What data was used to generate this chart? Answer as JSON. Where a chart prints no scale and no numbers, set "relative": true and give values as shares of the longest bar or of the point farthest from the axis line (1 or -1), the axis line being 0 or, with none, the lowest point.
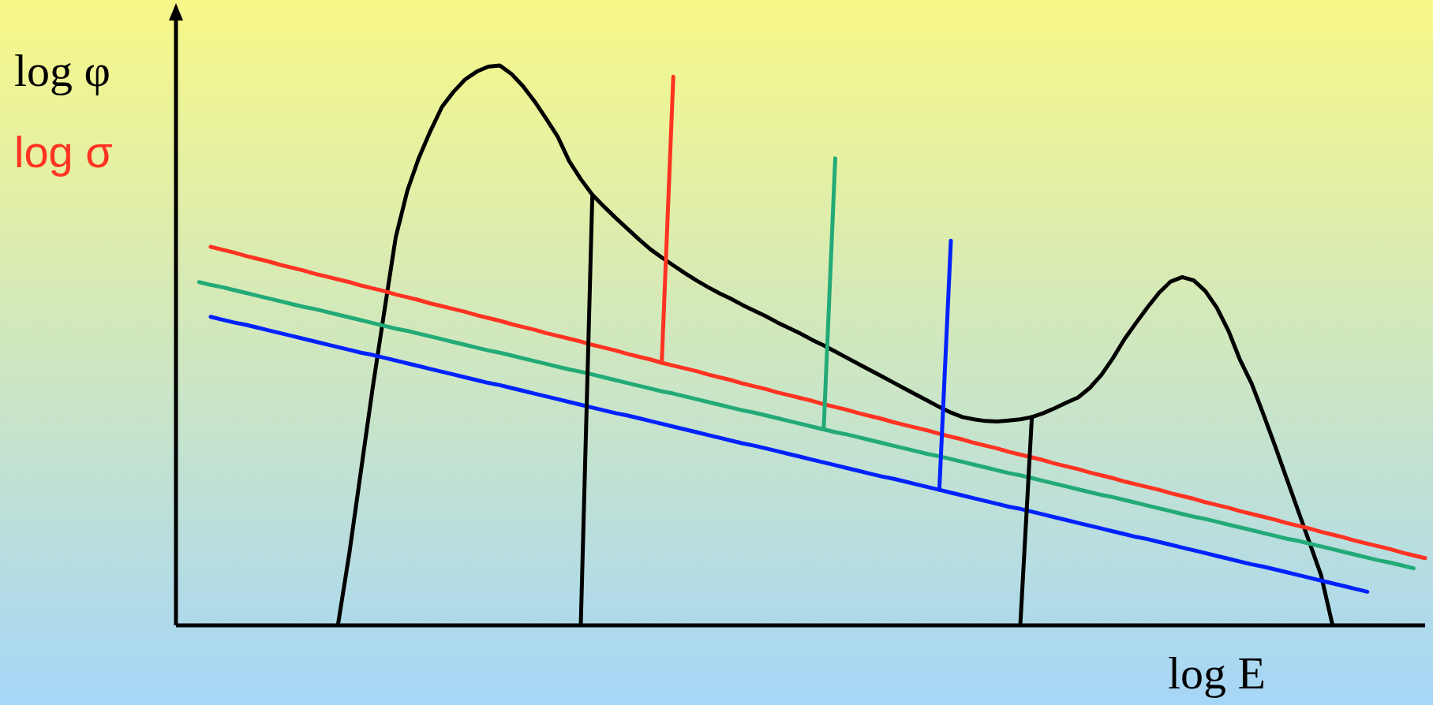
{
  "chart_data": {
    "type": "line",
    "relative": true,
    "ylabel": "log φ",
    "xlabel": "log E",
    "annotations": [
      "log σ"
    ],
    "marker": "none",
    "categories": [
      null,
      null,
      null,
      null,
      null,
      null,
      null,
      null,
      null,
      null,
      null,
      null,
      null,
      null,
      null,
      null,
      null,
      null,
      null,
      null,
      null,
      null,
      null,
      null,
      null,
      null,
      null,
      null,
      null,
      null,
      null,
      null,
      null,
      null,
      null,
      null,
      null,
      null,
      null,
      null,
      null,
      null,
      null,
      null,
      null,
      null,
      null,
      null,
      null,
      null,
      null,
      null,
      null,
      null,
      null,
      null,
      null,
      null,
      null,
      null,
      null,
      null,
      null,
      null,
      null,
      null,
      null,
      null,
      null,
      null,
      null,
      null,
      null,
      null,
      null,
      null,
      null,
      null,
      null,
      null,
      null,
      null,
      null,
      null,
      null,
      null,
      null,
      null,
      null,
      null,
      null,
      null,
      null,
      null,
      null,
      null,
      null,
      null,
      null,
      null,
      null,
      null,
      null,
      null,
      null,
      null,
      null,
      null,
      null
    ],
    "series": [
      {
        "color": "#000000",
        "values": [
          null,
          null,
          null,
          null,
          null,
          null,
          null,
          null,
          null,
          null,
          null,
          null,
          null,
          null,
          0,
          0.13,
          0.277,
          0.423,
          0.559,
          0.693,
          0.776,
          0.835,
          0.883,
          0.926,
          0.953,
          0.975,
          0.989,
          0.998,
          1,
          0.985,
          0.963,
          0.936,
          0.905,
          0.873,
          0.829,
          0.797,
          0.769,
          0.748,
          0.728,
          0.709,
          0.69,
          0.672,
          0.657,
          0.643,
          0.629,
          0.616,
          0.604,
          0.593,
          0.583,
          0.572,
          0.562,
          0.552,
          0.541,
          0.531,
          0.521,
          0.51,
          0.5,
          0.489,
          0.478,
          0.467,
          0.456,
          0.445,
          0.434,
          0.423,
          0.412,
          0.401,
          0.39,
          0.38,
          0.372,
          0.368,
          0.365,
          0.364,
          0.366,
          0.368,
          0.372,
          0.379,
          0.388,
          0.398,
          0.407,
          0.424,
          0.447,
          0.477,
          0.511,
          0.54,
          0.568,
          0.594,
          0.614,
          0.622,
          0.616,
          0.597,
          0.567,
          0.526,
          0.474,
          0.432,
          0.378,
          0.322,
          0.264,
          0.206,
          0.148,
          0.09,
          0,
          null,
          null,
          null,
          null,
          null,
          null,
          null,
          null
        ]
      },
      {
        "color": "#ff3322",
        "values": [
          null,
          null,
          null,
          0.676,
          0.671,
          0.666,
          0.66,
          0.655,
          0.65,
          0.644,
          0.639,
          0.634,
          0.628,
          0.623,
          0.618,
          0.613,
          0.607,
          0.602,
          0.597,
          0.591,
          0.586,
          0.581,
          0.575,
          0.57,
          0.565,
          0.56,
          0.554,
          0.549,
          0.544,
          0.538,
          0.533,
          0.528,
          0.522,
          0.517,
          0.512,
          0.507,
          0.501,
          0.496,
          0.491,
          0.485,
          0.48,
          0.475,
          0.469,
          0.464,
          0.459,
          0.454,
          0.448,
          0.443,
          0.438,
          0.432,
          0.427,
          0.422,
          0.416,
          0.411,
          0.406,
          0.401,
          0.395,
          0.39,
          0.385,
          0.379,
          0.374,
          0.369,
          0.363,
          0.358,
          0.353,
          0.348,
          0.342,
          0.337,
          0.332,
          0.326,
          0.321,
          0.316,
          0.31,
          0.305,
          0.3,
          0.295,
          0.289,
          0.284,
          0.279,
          0.273,
          0.268,
          0.263,
          0.257,
          0.252,
          0.247,
          0.242,
          0.236,
          0.231,
          0.226,
          0.22,
          0.215,
          0.21,
          0.204,
          0.199,
          0.194,
          0.189,
          0.183,
          0.178,
          0.173,
          0.167,
          0.162,
          0.157,
          0.151,
          0.146,
          0.141,
          0.136,
          0.13,
          0.125,
          0.12
        ]
      },
      {
        "color": "#22aa77",
        "values": [
          null,
          null,
          0.613,
          0.608,
          0.604,
          0.599,
          0.594,
          0.589,
          0.584,
          0.579,
          0.574,
          0.569,
          0.565,
          0.56,
          0.555,
          0.55,
          0.545,
          0.54,
          0.535,
          0.53,
          0.526,
          0.521,
          0.516,
          0.511,
          0.506,
          0.501,
          0.496,
          0.491,
          0.487,
          0.482,
          0.477,
          0.472,
          0.467,
          0.462,
          0.457,
          0.453,
          0.448,
          0.443,
          0.438,
          0.433,
          0.428,
          0.423,
          0.418,
          0.414,
          0.409,
          0.404,
          0.399,
          0.394,
          0.389,
          0.384,
          0.38,
          0.375,
          0.37,
          0.365,
          0.36,
          0.355,
          0.35,
          0.345,
          0.341,
          0.336,
          0.331,
          0.326,
          0.321,
          0.316,
          0.311,
          0.306,
          0.302,
          0.297,
          0.292,
          0.287,
          0.282,
          0.277,
          0.272,
          0.268,
          0.263,
          0.258,
          0.253,
          0.248,
          0.243,
          0.238,
          0.233,
          0.229,
          0.224,
          0.219,
          0.214,
          0.209,
          0.204,
          0.199,
          0.194,
          0.19,
          0.185,
          0.18,
          0.175,
          0.17,
          0.165,
          0.16,
          0.155,
          0.151,
          0.146,
          0.141,
          0.136,
          0.131,
          0.126,
          0.121,
          0.116,
          0.112,
          0.107,
          0.102,
          null
        ]
      },
      {
        "color": "#0022ff",
        "values": [
          null,
          null,
          null,
          0.551,
          0.546,
          0.541,
          0.537,
          0.532,
          0.527,
          0.522,
          0.517,
          0.512,
          0.507,
          0.502,
          0.497,
          0.492,
          0.487,
          0.483,
          0.478,
          0.473,
          0.468,
          0.463,
          0.458,
          0.453,
          0.448,
          0.443,
          0.438,
          0.433,
          0.429,
          0.424,
          0.419,
          0.414,
          0.409,
          0.404,
          0.399,
          0.394,
          0.389,
          0.384,
          0.379,
          0.375,
          0.37,
          0.365,
          0.36,
          0.355,
          0.35,
          0.345,
          0.34,
          0.335,
          0.33,
          0.325,
          0.321,
          0.316,
          0.311,
          0.306,
          0.301,
          0.296,
          0.291,
          0.286,
          0.281,
          0.276,
          0.271,
          0.266,
          0.262,
          0.257,
          0.252,
          0.247,
          0.242,
          0.237,
          0.232,
          0.227,
          0.222,
          0.217,
          0.212,
          0.208,
          0.203,
          0.198,
          0.193,
          0.188,
          0.183,
          0.178,
          0.173,
          0.168,
          0.163,
          0.158,
          0.154,
          0.149,
          0.144,
          0.139,
          0.134,
          0.129,
          0.124,
          0.119,
          0.114,
          0.109,
          0.105,
          0.1,
          0.095,
          0.09,
          0.085,
          0.08,
          0.075,
          0.07,
          0.065,
          0.06,
          null,
          null,
          null,
          null,
          null
        ]
      },
      {
        "color": "#000000",
        "values": [
          null,
          null,
          null,
          null,
          null,
          null,
          null,
          null,
          null,
          null,
          null,
          null,
          null,
          null,
          null,
          null,
          null,
          null,
          null,
          null,
          null,
          null,
          null,
          null,
          null,
          null,
          null,
          null,
          null,
          null,
          null,
          null,
          null,
          null,
          null,
          0,
          0.769,
          null,
          null,
          null,
          null,
          null,
          null,
          null,
          null,
          null,
          null,
          null,
          null,
          null,
          null,
          null,
          null,
          null,
          null,
          null,
          null,
          null,
          null,
          null,
          null,
          null,
          null,
          null,
          null,
          null,
          null,
          null,
          null,
          null,
          null,
          null,
          null,
          null,
          null,
          null,
          null,
          null,
          null,
          null,
          null,
          null,
          null,
          null,
          null,
          null,
          null,
          null,
          null,
          null,
          null,
          null,
          null,
          null,
          null,
          null,
          null,
          null,
          null,
          null,
          null,
          null,
          null,
          null,
          null,
          null,
          null,
          null,
          null
        ]
      },
      {
        "color": "#ff3322",
        "values": [
          null,
          null,
          null,
          null,
          null,
          null,
          null,
          null,
          null,
          null,
          null,
          null,
          null,
          null,
          null,
          null,
          null,
          null,
          null,
          null,
          null,
          null,
          null,
          null,
          null,
          null,
          null,
          null,
          null,
          null,
          null,
          null,
          null,
          null,
          null,
          null,
          null,
          null,
          null,
          null,
          null,
          null,
          0.469,
          0.98,
          null,
          null,
          null,
          null,
          null,
          null,
          null,
          null,
          null,
          null,
          null,
          null,
          null,
          null,
          null,
          null,
          null,
          null,
          null,
          null,
          null,
          null,
          null,
          null,
          null,
          null,
          null,
          null,
          null,
          null,
          null,
          null,
          null,
          null,
          null,
          null,
          null,
          null,
          null,
          null,
          null,
          null,
          null,
          null,
          null,
          null,
          null,
          null,
          null,
          null,
          null,
          null,
          null,
          null,
          null,
          null,
          null,
          null,
          null,
          null,
          null,
          null,
          null,
          null,
          null
        ]
      },
      {
        "color": "#22aa77",
        "values": [
          null,
          null,
          null,
          null,
          null,
          null,
          null,
          null,
          null,
          null,
          null,
          null,
          null,
          null,
          null,
          null,
          null,
          null,
          null,
          null,
          null,
          null,
          null,
          null,
          null,
          null,
          null,
          null,
          null,
          null,
          null,
          null,
          null,
          null,
          null,
          null,
          null,
          null,
          null,
          null,
          null,
          null,
          null,
          null,
          null,
          null,
          null,
          null,
          null,
          null,
          null,
          null,
          null,
          null,
          null,
          null,
          0.35,
          0.834,
          null,
          null,
          null,
          null,
          null,
          null,
          null,
          null,
          null,
          null,
          null,
          null,
          null,
          null,
          null,
          null,
          null,
          null,
          null,
          null,
          null,
          null,
          null,
          null,
          null,
          null,
          null,
          null,
          null,
          null,
          null,
          null,
          null,
          null,
          null,
          null,
          null,
          null,
          null,
          null,
          null,
          null,
          null,
          null,
          null,
          null,
          null,
          null,
          null,
          null,
          null
        ]
      },
      {
        "color": "#0022ff",
        "values": [
          null,
          null,
          null,
          null,
          null,
          null,
          null,
          null,
          null,
          null,
          null,
          null,
          null,
          null,
          null,
          null,
          null,
          null,
          null,
          null,
          null,
          null,
          null,
          null,
          null,
          null,
          null,
          null,
          null,
          null,
          null,
          null,
          null,
          null,
          null,
          null,
          null,
          null,
          null,
          null,
          null,
          null,
          null,
          null,
          null,
          null,
          null,
          null,
          null,
          null,
          null,
          null,
          null,
          null,
          null,
          null,
          null,
          null,
          null,
          null,
          null,
          null,
          null,
          null,
          null,
          null,
          0.242,
          0.687,
          null,
          null,
          null,
          null,
          null,
          null,
          null,
          null,
          null,
          null,
          null,
          null,
          null,
          null,
          null,
          null,
          null,
          null,
          null,
          null,
          null,
          null,
          null,
          null,
          null,
          null,
          null,
          null,
          null,
          null,
          null,
          null,
          null,
          null,
          null,
          null,
          null,
          null,
          null,
          null,
          null
        ]
      },
      {
        "color": "#000000",
        "values": [
          null,
          null,
          null,
          null,
          null,
          null,
          null,
          null,
          null,
          null,
          null,
          null,
          null,
          null,
          null,
          null,
          null,
          null,
          null,
          null,
          null,
          null,
          null,
          null,
          null,
          null,
          null,
          null,
          null,
          null,
          null,
          null,
          null,
          null,
          null,
          null,
          null,
          null,
          null,
          null,
          null,
          null,
          null,
          null,
          null,
          null,
          null,
          null,
          null,
          null,
          null,
          null,
          null,
          null,
          null,
          null,
          null,
          null,
          null,
          null,
          null,
          null,
          null,
          null,
          null,
          null,
          null,
          null,
          null,
          null,
          null,
          null,
          null,
          0,
          0.372,
          null,
          null,
          null,
          null,
          null,
          null,
          null,
          null,
          null,
          null,
          null,
          null,
          null,
          null,
          null,
          null,
          null,
          null,
          null,
          null,
          null,
          null,
          null,
          null,
          null,
          null,
          null,
          null,
          null,
          null,
          null,
          null,
          null,
          null
        ]
      }
    ]
  }
}
